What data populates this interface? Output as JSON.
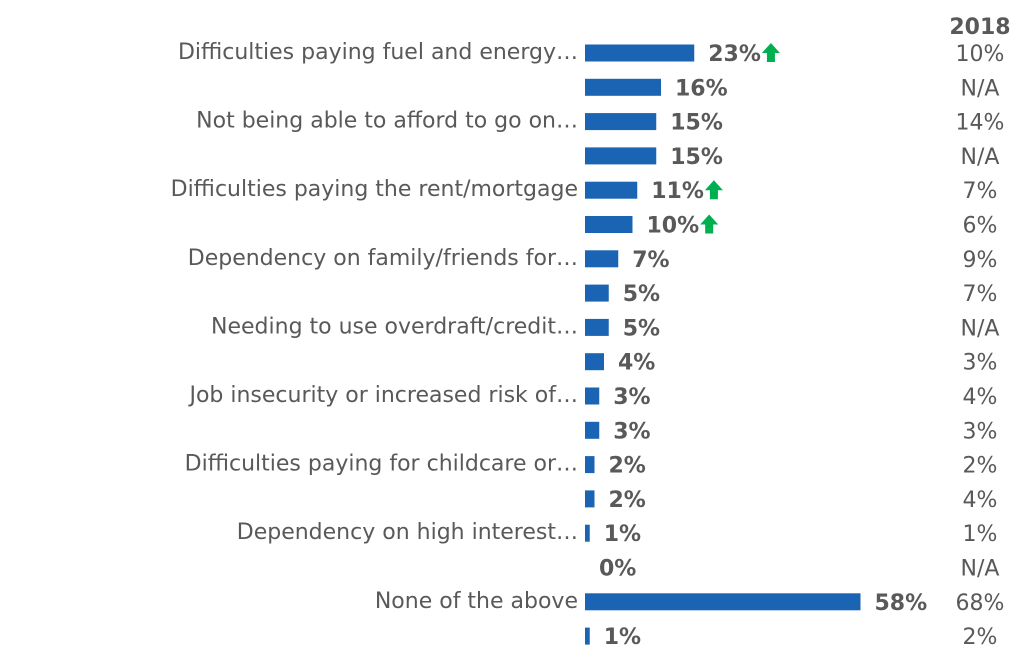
{
  "chart_data": {
    "type": "bar",
    "orientation": "horizontal",
    "color": "#1b63b3",
    "categories": [
      "Difficulties paying fuel and energy…",
      null,
      "Not being able to afford to go on…",
      null,
      "Difficulties paying the rent/mortgage",
      null,
      "Dependency on family/friends for…",
      null,
      "Needing to use overdraft/credit…",
      null,
      "Job insecurity or increased risk of…",
      null,
      "Difficulties paying for childcare or…",
      null,
      "Dependency on high interest…",
      null,
      "None of the above",
      null
    ],
    "values": [
      23,
      16,
      15,
      15,
      11,
      10,
      7,
      5,
      5,
      4,
      3,
      3,
      2,
      2,
      1,
      0,
      58,
      1
    ],
    "value_labels": [
      "23%",
      "16%",
      "15%",
      "15%",
      "11%",
      "10%",
      "7%",
      "5%",
      "5%",
      "4%",
      "3%",
      "3%",
      "2%",
      "2%",
      "1%",
      "0%",
      "58%",
      "1%"
    ],
    "increased": [
      true,
      false,
      false,
      false,
      true,
      true,
      false,
      false,
      false,
      false,
      false,
      false,
      false,
      false,
      false,
      false,
      false,
      false
    ],
    "arrow_color": "#00b050",
    "xlim": [
      0,
      60
    ],
    "comparison": {
      "title": "2018",
      "labels": [
        "10%",
        "N/A",
        "14%",
        "N/A",
        "7%",
        "6%",
        "9%",
        "7%",
        "N/A",
        "3%",
        "4%",
        "3%",
        "2%",
        "4%",
        "1%",
        "N/A",
        "68%",
        "2%"
      ]
    }
  }
}
